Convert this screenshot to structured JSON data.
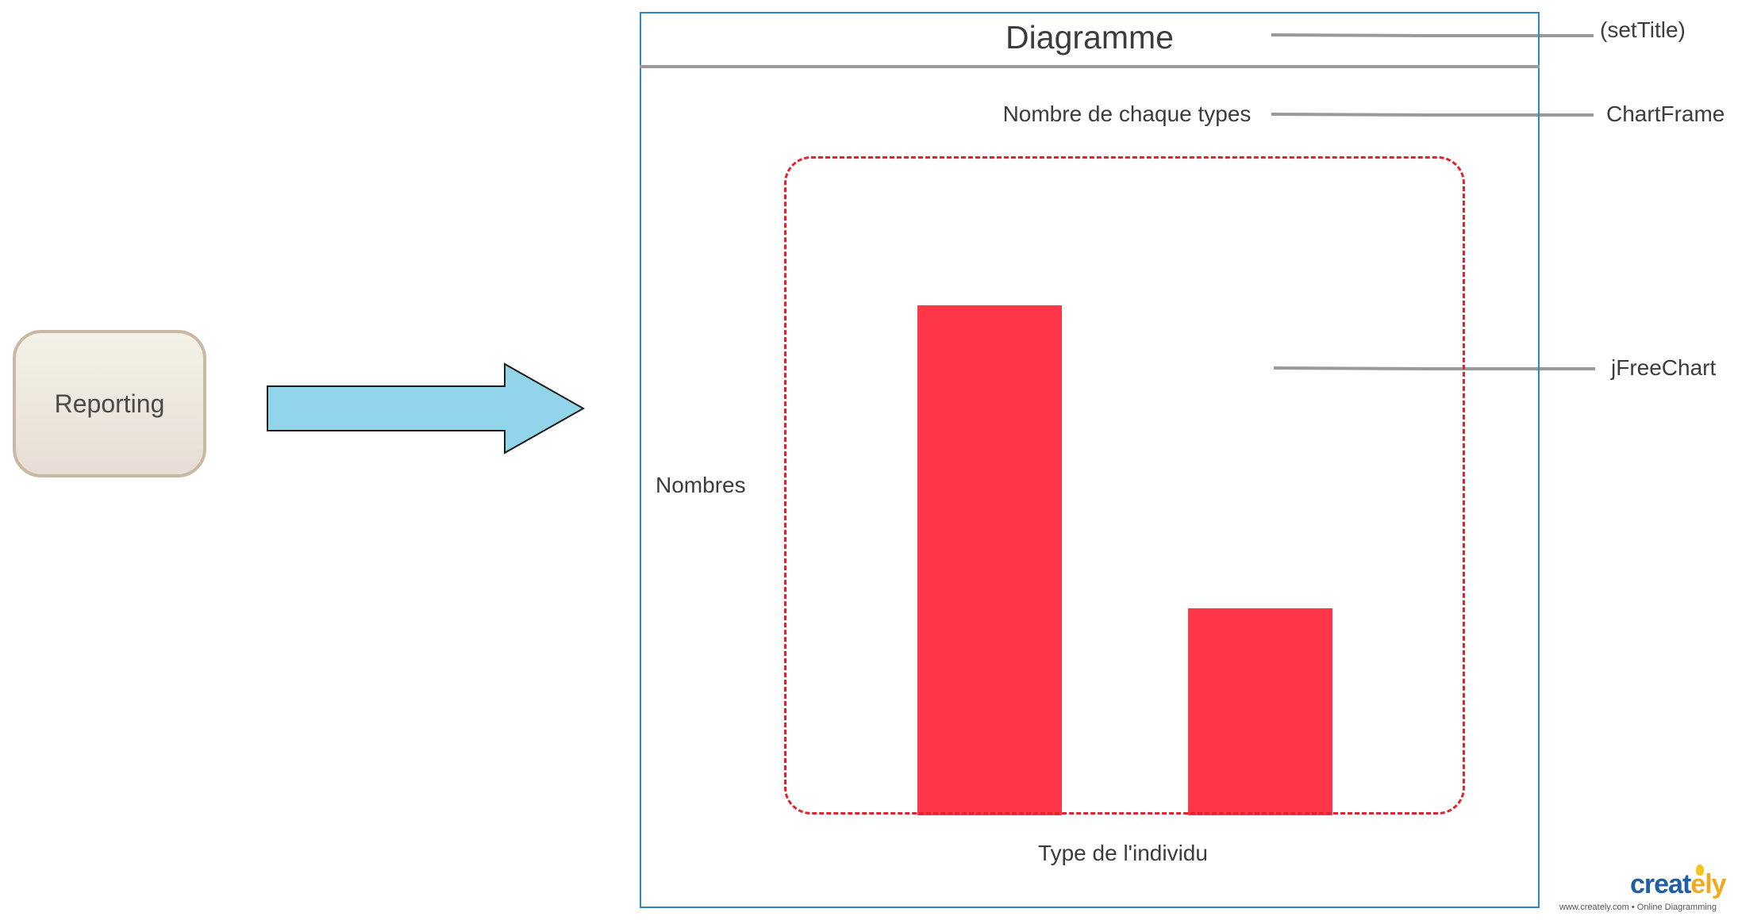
{
  "source_box": {
    "label": "Reporting"
  },
  "frame": {
    "title": "Diagramme",
    "subtitle": "Nombre de chaque types",
    "y_label": "Nombres",
    "x_label": "Type de l'individu"
  },
  "callouts": [
    {
      "id": "settitle",
      "label": "(setTitle)"
    },
    {
      "id": "chartframe",
      "label": "ChartFrame"
    },
    {
      "id": "jfreechart",
      "label": "jFreeChart"
    }
  ],
  "chart_data": {
    "type": "bar",
    "bars": [
      {
        "value": 1.0
      },
      {
        "value": 0.406
      }
    ]
  },
  "colors": {
    "arrow_fill": "#92d4ea",
    "bar": "#ff3647",
    "dashed_border": "#e2232f",
    "frame_border": "#2f86c8",
    "connector": "#9a9a9a"
  },
  "branding": {
    "logo_main": "creat",
    "logo_accent": "ely",
    "tagline": "www.creately.com • Online Diagramming"
  }
}
